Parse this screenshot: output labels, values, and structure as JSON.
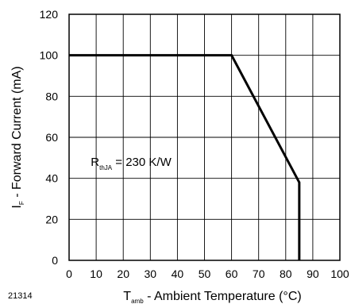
{
  "chart_data": {
    "type": "line",
    "figure_id": "21314",
    "xlabel": {
      "symbol": "T",
      "subscript": "amb",
      "text": " - Ambient Temperature (°C)"
    },
    "ylabel": {
      "symbol": "I",
      "subscript": "F",
      "text": " - Forward Current (mA)"
    },
    "xlim": [
      0,
      100
    ],
    "ylim": [
      0,
      120
    ],
    "x_ticks": [
      0,
      10,
      20,
      30,
      40,
      50,
      60,
      70,
      80,
      90,
      100
    ],
    "y_ticks": [
      0,
      20,
      40,
      60,
      80,
      100,
      120
    ],
    "grid": true,
    "annotation": {
      "symbol": "R",
      "subscript": "thJA",
      "text": " = 230 K/W",
      "x": 8,
      "y": 48
    },
    "series": [
      {
        "x": [
          0,
          60,
          85,
          85
        ],
        "y": [
          100,
          100,
          38,
          0
        ],
        "color": "#000000"
      }
    ]
  }
}
